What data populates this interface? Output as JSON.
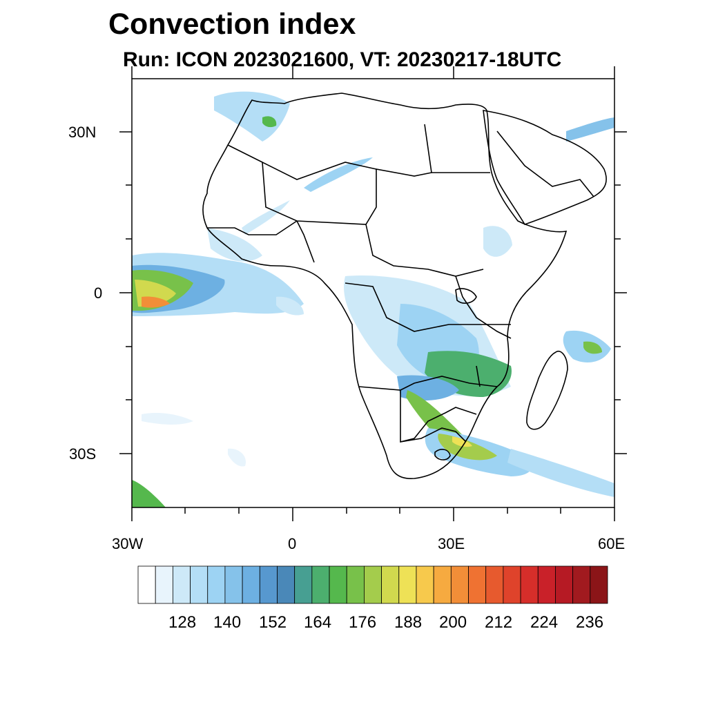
{
  "title": "Convection index",
  "subtitle": "Run: ICON 2023021600,  VT: 20230217-18UTC",
  "map": {
    "lon_range": [
      -30,
      60
    ],
    "lat_range": [
      -40,
      40
    ],
    "lat_labels": [
      {
        "value": 30,
        "text": "30N"
      },
      {
        "value": 0,
        "text": "0"
      },
      {
        "value": -30,
        "text": "30S"
      }
    ],
    "lon_labels": [
      {
        "value": -30,
        "text": "30W"
      },
      {
        "value": 0,
        "text": "0"
      },
      {
        "value": 30,
        "text": "30E"
      },
      {
        "value": 60,
        "text": "60E"
      }
    ]
  },
  "colorbar": {
    "labels": [
      "128",
      "140",
      "152",
      "164",
      "176",
      "188",
      "200",
      "212",
      "224",
      "236"
    ],
    "colors": [
      "#ffffff",
      "#e8f4fc",
      "#cde9f8",
      "#b4def6",
      "#9dd3f3",
      "#85c2ea",
      "#6db0e2",
      "#5798cf",
      "#4a88b8",
      "#479f92",
      "#4caf6e",
      "#55b84d",
      "#78c14a",
      "#a4cc4c",
      "#d1d94e",
      "#eee156",
      "#f7c94c",
      "#f6aa40",
      "#f28e38",
      "#ef7232",
      "#e75a2e",
      "#df432b",
      "#d62e2a",
      "#c92129",
      "#b61a24",
      "#a11a1f",
      "#8b1518"
    ]
  }
}
